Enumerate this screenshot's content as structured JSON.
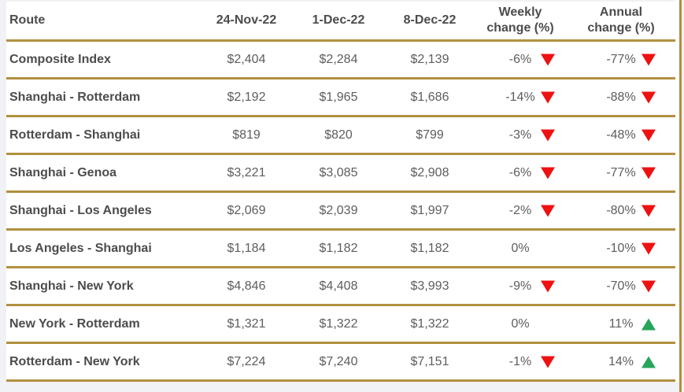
{
  "colors": {
    "border_gold": "#b1903f",
    "negative_red": "#ee1111",
    "positive_green": "#26a55b",
    "header_text": "#4c4c4c",
    "value_text": "#5d5d5d",
    "page_background": "#f1f2f5"
  },
  "table": {
    "headers": {
      "route": "Route",
      "date1": "24-Nov-22",
      "date2": "1-Dec-22",
      "date3": "8-Dec-22",
      "weekly_line1": "Weekly",
      "weekly_line2": "change (%)",
      "annual_line1": "Annual",
      "annual_line2": "change (%)"
    }
  },
  "chart_data": {
    "type": "table",
    "columns": [
      "Route",
      "24-Nov-22",
      "1-Dec-22",
      "8-Dec-22",
      "Weekly change (%)",
      "Annual change (%)"
    ],
    "rows": [
      {
        "route": "Composite Index",
        "values": [
          "$2,404",
          "$2,284",
          "$2,139"
        ],
        "weekly_change": "-6%",
        "weekly_direction": "down",
        "annual_change": "-77%",
        "annual_direction": "down"
      },
      {
        "route": "Shanghai - Rotterdam",
        "values": [
          "$2,192",
          "$1,965",
          "$1,686"
        ],
        "weekly_change": "-14%",
        "weekly_direction": "down",
        "annual_change": "-88%",
        "annual_direction": "down"
      },
      {
        "route": "Rotterdam - Shanghai",
        "values": [
          "$819",
          "$820",
          "$799"
        ],
        "weekly_change": "-3%",
        "weekly_direction": "down",
        "annual_change": "-48%",
        "annual_direction": "down"
      },
      {
        "route": "Shanghai - Genoa",
        "values": [
          "$3,221",
          "$3,085",
          "$2,908"
        ],
        "weekly_change": "-6%",
        "weekly_direction": "down",
        "annual_change": "-77%",
        "annual_direction": "down"
      },
      {
        "route": "Shanghai - Los Angeles",
        "values": [
          "$2,069",
          "$2,039",
          "$1,997"
        ],
        "weekly_change": "-2%",
        "weekly_direction": "down",
        "annual_change": "-80%",
        "annual_direction": "down"
      },
      {
        "route": "Los Angeles - Shanghai",
        "values": [
          "$1,184",
          "$1,182",
          "$1,182"
        ],
        "weekly_change": "0%",
        "weekly_direction": "none",
        "annual_change": "-10%",
        "annual_direction": "down"
      },
      {
        "route": "Shanghai - New York",
        "values": [
          "$4,846",
          "$4,408",
          "$3,993"
        ],
        "weekly_change": "-9%",
        "weekly_direction": "down",
        "annual_change": "-70%",
        "annual_direction": "down"
      },
      {
        "route": "New York - Rotterdam",
        "values": [
          "$1,321",
          "$1,322",
          "$1,322"
        ],
        "weekly_change": "0%",
        "weekly_direction": "none",
        "annual_change": "11%",
        "annual_direction": "up"
      },
      {
        "route": "Rotterdam - New York",
        "values": [
          "$7,224",
          "$7,240",
          "$7,151"
        ],
        "weekly_change": "-1%",
        "weekly_direction": "down",
        "annual_change": "14%",
        "annual_direction": "up"
      }
    ]
  }
}
